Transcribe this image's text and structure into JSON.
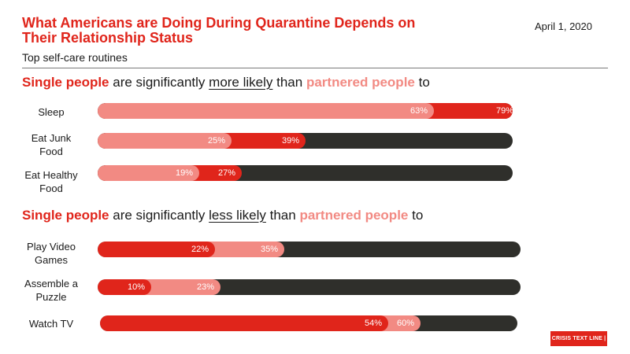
{
  "header": {
    "title": "What Americans are Doing During Quarantine Depends on Their Relationship Status",
    "subtitle": "Top self-care routines",
    "date": "April 1, 2020"
  },
  "sections": [
    {
      "single": "Single people",
      "mid": " are significantly ",
      "comparison": "more likely",
      "than": " than ",
      "partnered": "partnered people",
      "end": " to"
    },
    {
      "single": "Single people",
      "mid": " are significantly ",
      "comparison": "less likely",
      "than": " than ",
      "partnered": "partnered people",
      "end": " to"
    }
  ],
  "logo": "CRISIS TEXT LINE |",
  "colors": {
    "single": "#e0251b",
    "partnered": "#f28a83",
    "track": "#2f2f2b"
  },
  "chart_data": {
    "type": "bar",
    "orientation": "horizontal",
    "series": [
      {
        "name": "Single people",
        "color": "#e0251b"
      },
      {
        "name": "Partnered people",
        "color": "#f28a83"
      }
    ],
    "rows": [
      {
        "label": "Sleep",
        "single": 79,
        "partnered": 63,
        "single_label": "79%",
        "partnered_label": "63%"
      },
      {
        "label": "Eat Junk Food",
        "single": 39,
        "partnered": 25,
        "single_label": "39%",
        "partnered_label": "25%"
      },
      {
        "label": "Eat Healthy Food",
        "single": 27,
        "partnered": 19,
        "single_label": "27%",
        "partnered_label": "19%"
      },
      {
        "label": "Play Video Games",
        "single": 22,
        "partnered": 35,
        "single_label": "22%",
        "partnered_label": "35%"
      },
      {
        "label": "Assemble a Puzzle",
        "single": 10,
        "partnered": 23,
        "single_label": "10%",
        "partnered_label": "23%"
      },
      {
        "label": "Watch TV",
        "single": 54,
        "partnered": 60,
        "single_label": "54%",
        "partnered_label": "60%"
      }
    ],
    "xlim": [
      0,
      100
    ]
  }
}
